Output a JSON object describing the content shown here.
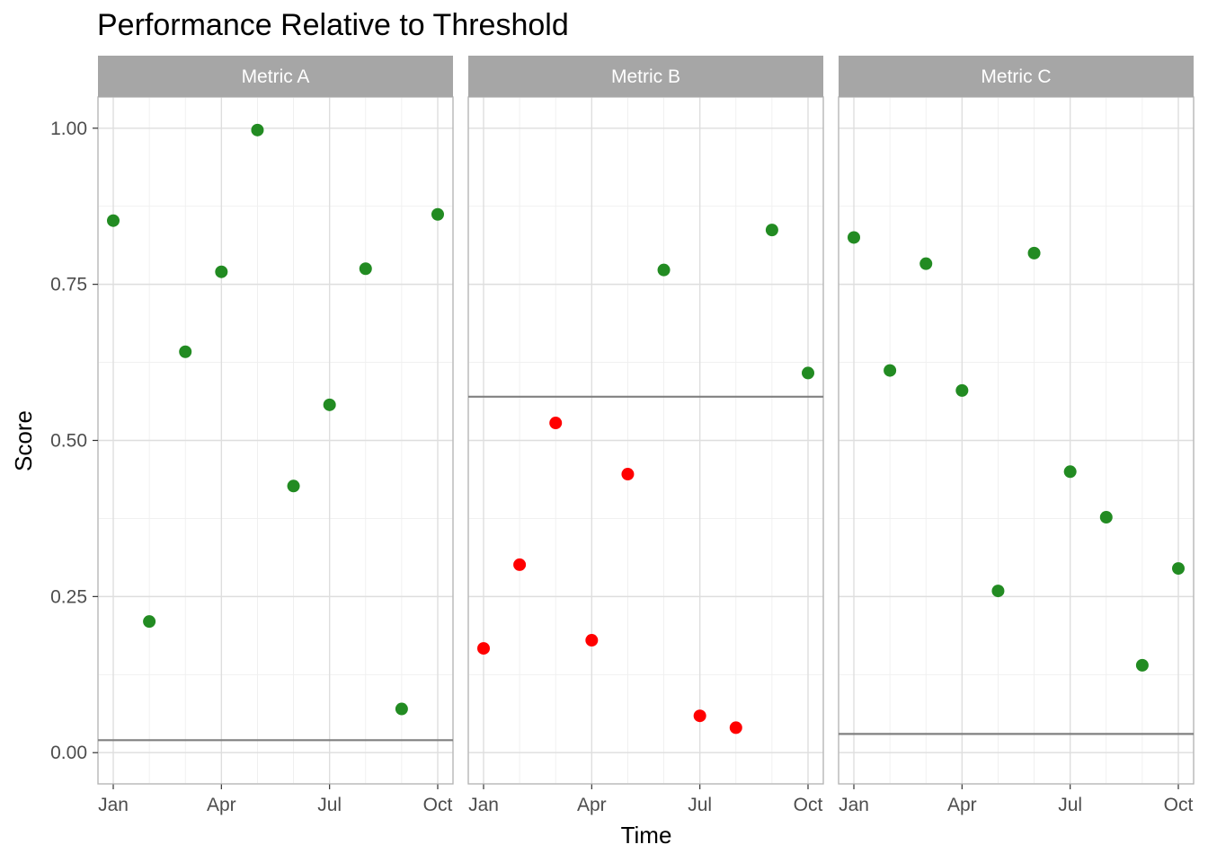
{
  "chart_data": {
    "type": "scatter",
    "title": "Performance Relative to Threshold",
    "xlabel": "Time",
    "ylabel": "Score",
    "ylim": [
      -0.05,
      1.05
    ],
    "y_ticks": [
      0.0,
      0.25,
      0.5,
      0.75,
      1.0
    ],
    "y_tick_labels": [
      "0.00",
      "0.25",
      "0.50",
      "0.75",
      "1.00"
    ],
    "x_months": [
      "Jan",
      "Feb",
      "Mar",
      "Apr",
      "May",
      "Jun",
      "Jul",
      "Aug",
      "Sep",
      "Oct"
    ],
    "x_ticks": [
      "Jan",
      "Apr",
      "Jul",
      "Oct"
    ],
    "grid": true,
    "colors": {
      "above": "#228B22",
      "below": "#FF0000",
      "threshold": "#808080",
      "strip": "#A6A6A6"
    },
    "panels": [
      {
        "name": "Metric A",
        "threshold": 0.02,
        "points": [
          {
            "x": "Jan",
            "y": 0.852
          },
          {
            "x": "Feb",
            "y": 0.21
          },
          {
            "x": "Mar",
            "y": 0.642
          },
          {
            "x": "Apr",
            "y": 0.77
          },
          {
            "x": "May",
            "y": 0.997
          },
          {
            "x": "Jun",
            "y": 0.427
          },
          {
            "x": "Jul",
            "y": 0.557
          },
          {
            "x": "Aug",
            "y": 0.775
          },
          {
            "x": "Sep",
            "y": 0.07
          },
          {
            "x": "Oct",
            "y": 0.862
          }
        ]
      },
      {
        "name": "Metric B",
        "threshold": 0.57,
        "points": [
          {
            "x": "Jan",
            "y": 0.167
          },
          {
            "x": "Feb",
            "y": 0.301
          },
          {
            "x": "Mar",
            "y": 0.528
          },
          {
            "x": "Apr",
            "y": 0.18
          },
          {
            "x": "May",
            "y": 0.446
          },
          {
            "x": "Jun",
            "y": 0.773
          },
          {
            "x": "Jul",
            "y": 0.059
          },
          {
            "x": "Aug",
            "y": 0.04
          },
          {
            "x": "Sep",
            "y": 0.837
          },
          {
            "x": "Oct",
            "y": 0.608
          }
        ]
      },
      {
        "name": "Metric C",
        "threshold": 0.03,
        "points": [
          {
            "x": "Jan",
            "y": 0.825
          },
          {
            "x": "Feb",
            "y": 0.612
          },
          {
            "x": "Mar",
            "y": 0.783
          },
          {
            "x": "Apr",
            "y": 0.58
          },
          {
            "x": "May",
            "y": 0.259
          },
          {
            "x": "Jun",
            "y": 0.8
          },
          {
            "x": "Jul",
            "y": 0.45
          },
          {
            "x": "Aug",
            "y": 0.377
          },
          {
            "x": "Sep",
            "y": 0.14
          },
          {
            "x": "Oct",
            "y": 0.295
          }
        ]
      }
    ]
  }
}
